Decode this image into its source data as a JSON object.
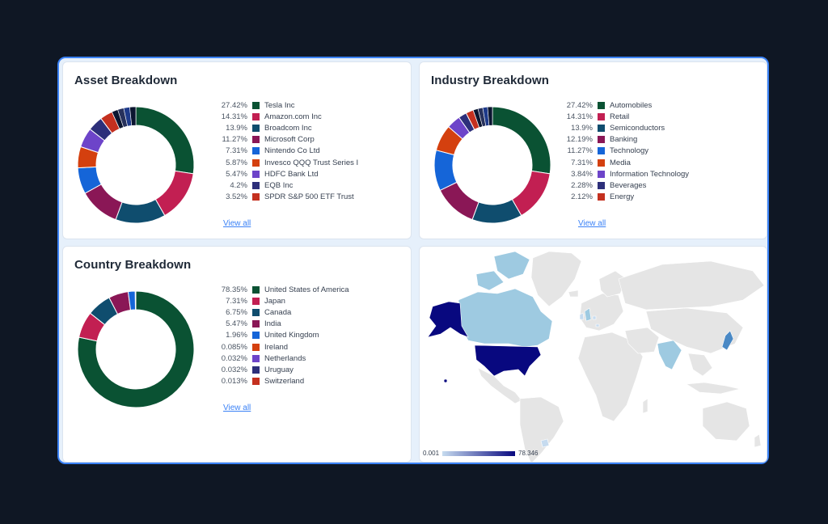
{
  "colors": [
    "#0a5233",
    "#c21f52",
    "#0f4d6e",
    "#8a1756",
    "#1565d8",
    "#d4400f",
    "#6d44c9",
    "#2d2f7a",
    "#c4301f"
  ],
  "asset": {
    "title": "Asset Breakdown",
    "view_all": "View all",
    "items": [
      {
        "pct": "27.42%",
        "name": "Tesla Inc",
        "value": 27.42
      },
      {
        "pct": "14.31%",
        "name": "Amazon.com Inc",
        "value": 14.31
      },
      {
        "pct": "13.9%",
        "name": "Broadcom Inc",
        "value": 13.9
      },
      {
        "pct": "11.27%",
        "name": "Microsoft Corp",
        "value": 11.27
      },
      {
        "pct": "7.31%",
        "name": "Nintendo Co Ltd",
        "value": 7.31
      },
      {
        "pct": "5.87%",
        "name": "Invesco QQQ Trust Series I",
        "value": 5.87
      },
      {
        "pct": "5.47%",
        "name": "HDFC Bank Ltd",
        "value": 5.47
      },
      {
        "pct": "4.2%",
        "name": "EQB Inc",
        "value": 4.2
      },
      {
        "pct": "3.52%",
        "name": "SPDR S&P 500 ETF Trust",
        "value": 3.52
      }
    ]
  },
  "industry": {
    "title": "Industry Breakdown",
    "view_all": "View all",
    "items": [
      {
        "pct": "27.42%",
        "name": "Automobiles",
        "value": 27.42
      },
      {
        "pct": "14.31%",
        "name": "Retail",
        "value": 14.31
      },
      {
        "pct": "13.9%",
        "name": "Semiconductors",
        "value": 13.9
      },
      {
        "pct": "12.19%",
        "name": "Banking",
        "value": 12.19
      },
      {
        "pct": "11.27%",
        "name": "Technology",
        "value": 11.27
      },
      {
        "pct": "7.31%",
        "name": "Media",
        "value": 7.31
      },
      {
        "pct": "3.84%",
        "name": "Information Technology",
        "value": 3.84
      },
      {
        "pct": "2.28%",
        "name": "Beverages",
        "value": 2.28
      },
      {
        "pct": "2.12%",
        "name": "Energy",
        "value": 2.12
      }
    ]
  },
  "country": {
    "title": "Country Breakdown",
    "view_all": "View all",
    "items": [
      {
        "pct": "78.35%",
        "name": "United States of America",
        "value": 78.35
      },
      {
        "pct": "7.31%",
        "name": "Japan",
        "value": 7.31
      },
      {
        "pct": "6.75%",
        "name": "Canada",
        "value": 6.75
      },
      {
        "pct": "5.47%",
        "name": "India",
        "value": 5.47
      },
      {
        "pct": "1.96%",
        "name": "United Kingdom",
        "value": 1.96
      },
      {
        "pct": "0.085%",
        "name": "Ireland",
        "value": 0.085
      },
      {
        "pct": "0.032%",
        "name": "Netherlands",
        "value": 0.032
      },
      {
        "pct": "0.032%",
        "name": "Uruguay",
        "value": 0.032
      },
      {
        "pct": "0.013%",
        "name": "Switzerland",
        "value": 0.013
      }
    ]
  },
  "map": {
    "scale_min": "0.001",
    "scale_max": "78.346",
    "colors": {
      "high": "#08087f",
      "mid": "#9ecae1",
      "low": "#c6dbef",
      "none": "#e5e5e5"
    }
  }
}
